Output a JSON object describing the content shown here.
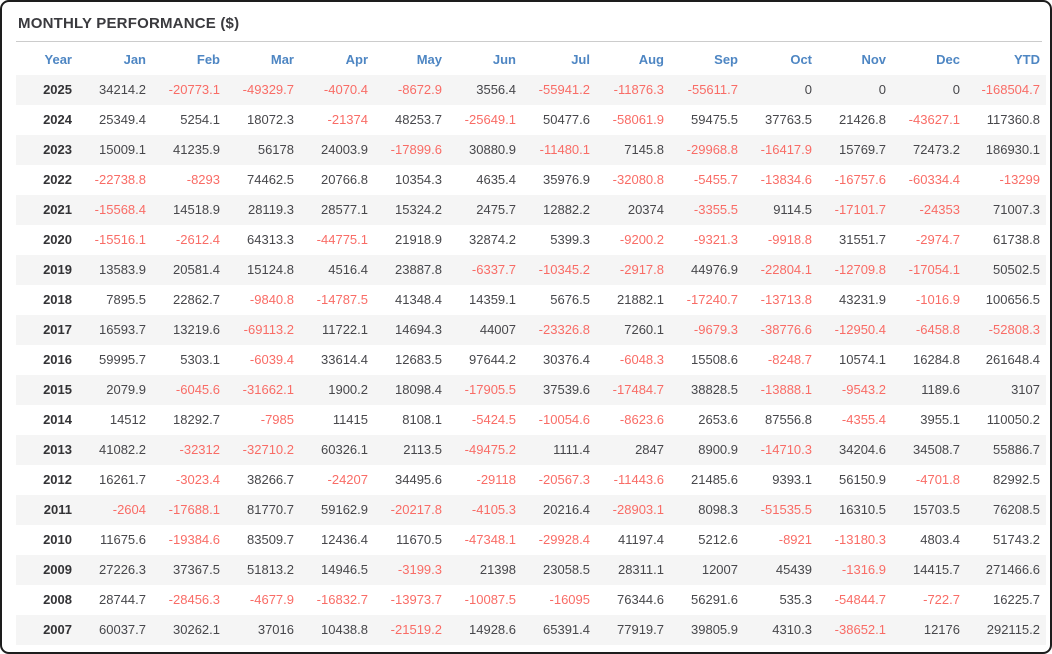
{
  "title": "MONTHLY PERFORMANCE ($)",
  "colors": {
    "header_text": "#4e86c3",
    "negative_value": "#f96c66",
    "positive_value": "#47474b",
    "row_alternate": "#f5f5f5",
    "frame_border": "#1d1d1d"
  },
  "table": {
    "columns": [
      "Year",
      "Jan",
      "Feb",
      "Mar",
      "Apr",
      "May",
      "Jun",
      "Jul",
      "Aug",
      "Sep",
      "Oct",
      "Nov",
      "Dec",
      "YTD"
    ],
    "rows": [
      {
        "year": "2025",
        "values": [
          34214.2,
          -20773.1,
          -49329.7,
          -4070.4,
          -8672.9,
          3556.4,
          -55941.2,
          -11876.3,
          -55611.7,
          0,
          0,
          0,
          -168504.7
        ]
      },
      {
        "year": "2024",
        "values": [
          25349.4,
          5254.1,
          18072.3,
          -21374,
          48253.7,
          -25649.1,
          50477.6,
          -58061.9,
          59475.5,
          37763.5,
          21426.8,
          -43627.1,
          117360.8
        ]
      },
      {
        "year": "2023",
        "values": [
          15009.1,
          41235.9,
          56178,
          24003.9,
          -17899.6,
          30880.9,
          -11480.1,
          7145.8,
          -29968.8,
          -16417.9,
          15769.7,
          72473.2,
          186930.1
        ]
      },
      {
        "year": "2022",
        "values": [
          -22738.8,
          -8293,
          74462.5,
          20766.8,
          10354.3,
          4635.4,
          35976.9,
          -32080.8,
          -5455.7,
          -13834.6,
          -16757.6,
          -60334.4,
          -13299
        ]
      },
      {
        "year": "2021",
        "values": [
          -15568.4,
          14518.9,
          28119.3,
          28577.1,
          15324.2,
          2475.7,
          12882.2,
          20374,
          -3355.5,
          9114.5,
          -17101.7,
          -24353,
          71007.3
        ]
      },
      {
        "year": "2020",
        "values": [
          -15516.1,
          -2612.4,
          64313.3,
          -44775.1,
          21918.9,
          32874.2,
          5399.3,
          -9200.2,
          -9321.3,
          -9918.8,
          31551.7,
          -2974.7,
          61738.8
        ]
      },
      {
        "year": "2019",
        "values": [
          13583.9,
          20581.4,
          15124.8,
          4516.4,
          23887.8,
          -6337.7,
          -10345.2,
          -2917.8,
          44976.9,
          -22804.1,
          -12709.8,
          -17054.1,
          50502.5
        ]
      },
      {
        "year": "2018",
        "values": [
          7895.5,
          22862.7,
          -9840.8,
          -14787.5,
          41348.4,
          14359.1,
          5676.5,
          21882.1,
          -17240.7,
          -13713.8,
          43231.9,
          -1016.9,
          100656.5
        ]
      },
      {
        "year": "2017",
        "values": [
          16593.7,
          13219.6,
          -69113.2,
          11722.1,
          14694.3,
          44007,
          -23326.8,
          7260.1,
          -9679.3,
          -38776.6,
          -12950.4,
          -6458.8,
          -52808.3
        ]
      },
      {
        "year": "2016",
        "values": [
          59995.7,
          5303.1,
          -6039.4,
          33614.4,
          12683.5,
          97644.2,
          30376.4,
          -6048.3,
          15508.6,
          -8248.7,
          10574.1,
          16284.8,
          261648.4
        ]
      },
      {
        "year": "2015",
        "values": [
          2079.9,
          -6045.6,
          -31662.1,
          1900.2,
          18098.4,
          -17905.5,
          37539.6,
          -17484.7,
          38828.5,
          -13888.1,
          -9543.2,
          1189.6,
          3107
        ]
      },
      {
        "year": "2014",
        "values": [
          14512,
          18292.7,
          -7985,
          11415,
          8108.1,
          -5424.5,
          -10054.6,
          -8623.6,
          2653.6,
          87556.8,
          -4355.4,
          3955.1,
          110050.2
        ]
      },
      {
        "year": "2013",
        "values": [
          41082.2,
          -32312,
          -32710.2,
          60326.1,
          2113.5,
          -49475.2,
          1111.4,
          2847,
          8900.9,
          -14710.3,
          34204.6,
          34508.7,
          55886.7
        ]
      },
      {
        "year": "2012",
        "values": [
          16261.7,
          -3023.4,
          38266.7,
          -24207,
          34495.6,
          -29118,
          -20567.3,
          -11443.6,
          21485.6,
          9393.1,
          56150.9,
          -4701.8,
          82992.5
        ]
      },
      {
        "year": "2011",
        "values": [
          -2604,
          -17688.1,
          81770.7,
          59162.9,
          -20217.8,
          -4105.3,
          20216.4,
          -28903.1,
          8098.3,
          -51535.5,
          16310.5,
          15703.5,
          76208.5
        ]
      },
      {
        "year": "2010",
        "values": [
          11675.6,
          -19384.6,
          83509.7,
          12436.4,
          11670.5,
          -47348.1,
          -29928.4,
          41197.4,
          5212.6,
          -8921,
          -13180.3,
          4803.4,
          51743.2
        ]
      },
      {
        "year": "2009",
        "values": [
          27226.3,
          37367.5,
          51813.2,
          14946.5,
          -3199.3,
          21398,
          23058.5,
          28311.1,
          12007,
          45439,
          -1316.9,
          14415.7,
          271466.6
        ]
      },
      {
        "year": "2008",
        "values": [
          28744.7,
          -28456.3,
          -4677.9,
          -16832.7,
          -13973.7,
          -10087.5,
          -16095,
          76344.6,
          56291.6,
          535.3,
          -54844.7,
          -722.7,
          16225.7
        ]
      },
      {
        "year": "2007",
        "values": [
          60037.7,
          30262.1,
          37016,
          10438.8,
          -21519.2,
          14928.6,
          65391.4,
          77919.7,
          39805.9,
          4310.3,
          -38652.1,
          12176,
          292115.2
        ]
      }
    ]
  }
}
